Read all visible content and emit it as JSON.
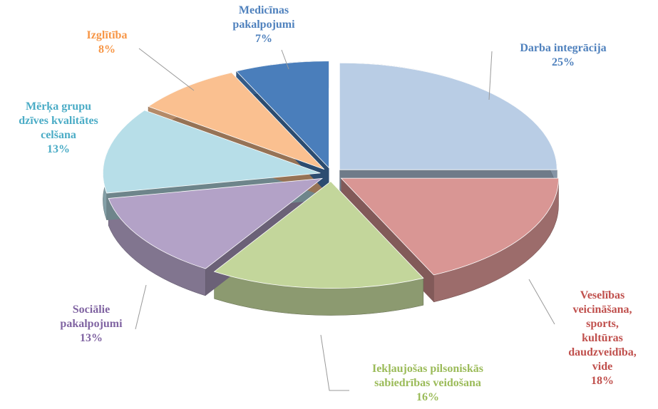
{
  "chart_data": {
    "type": "pie",
    "categories": [
      "Darba integrācija",
      "Veselības\nveicināšana,\nsports, kultūras\ndaudzveidība,\nvide",
      "Iekļaujošas pilsoniskās\nsabiedrības veidošana",
      "Sociālie\npakalpojumi",
      "Mērķa grupu\ndzīves kvalitātes\ncelšana",
      "Izglītība",
      "Medicīnas\npakalpojumi"
    ],
    "values": [
      25,
      18,
      16,
      13,
      13,
      8,
      7
    ],
    "value_labels": [
      "25%",
      "18%",
      "16%",
      "13%",
      "13%",
      "8%",
      "7%"
    ],
    "colors": [
      "#b9cde5",
      "#d99694",
      "#c3d69b",
      "#b3a2c7",
      "#b7dee8",
      "#fac090",
      "#4a7ebb"
    ],
    "label_colors": [
      "#4f81bd",
      "#c0504d",
      "#9bbb59",
      "#8064a2",
      "#4bacc6",
      "#f79646",
      "#4f81bd"
    ]
  }
}
